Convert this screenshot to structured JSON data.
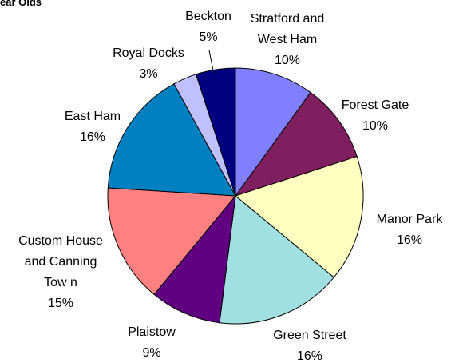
{
  "chart_data": {
    "type": "pie",
    "title": "ear Olds",
    "slices": [
      {
        "label": [
          "Stratford and",
          "West Ham"
        ],
        "pct_label": "10%",
        "value": 10,
        "color": "#8080ff"
      },
      {
        "label": [
          "Forest Gate"
        ],
        "pct_label": "10%",
        "value": 10,
        "color": "#7f1f5f"
      },
      {
        "label": [
          "Manor Park"
        ],
        "pct_label": "16%",
        "value": 16,
        "color": "#ffffc0"
      },
      {
        "label": [
          "Green Street"
        ],
        "pct_label": "16%",
        "value": 16,
        "color": "#a0e0e0"
      },
      {
        "label": [
          "Plaistow"
        ],
        "pct_label": "9%",
        "value": 9,
        "color": "#600080"
      },
      {
        "label": [
          "Custom House",
          "and Canning",
          "Tow n"
        ],
        "pct_label": "15%",
        "value": 15,
        "color": "#ff8080"
      },
      {
        "label": [
          "East Ham"
        ],
        "pct_label": "16%",
        "value": 16,
        "color": "#0080c0"
      },
      {
        "label": [
          "Royal Docks"
        ],
        "pct_label": "3%",
        "value": 3,
        "color": "#c0c0ff"
      },
      {
        "label": [
          "Beckton"
        ],
        "pct_label": "5%",
        "value": 5,
        "color": "#000080"
      }
    ]
  }
}
